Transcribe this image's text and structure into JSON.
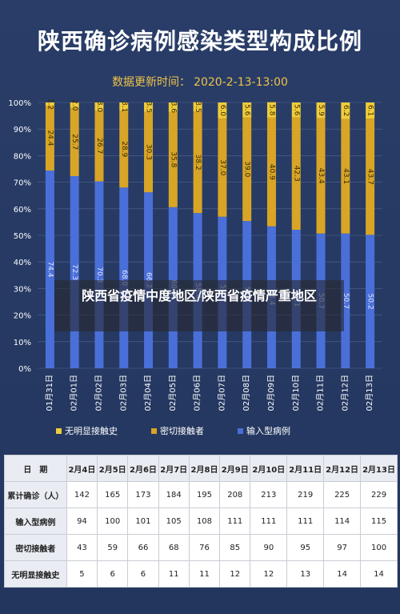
{
  "header": {
    "title": "陕西确诊病例感染类型构成比例",
    "update_label": "数据更新时间：",
    "update_value": "2020-2-13-13:00"
  },
  "overlay": {
    "text": "陕西省疫情中度地区/陕西省疫情严重地区"
  },
  "chart_data": {
    "type": "bar",
    "stacked": true,
    "categories": [
      "01月31日",
      "02月01日",
      "02月02日",
      "02月03日",
      "02月04日",
      "02月05日",
      "02月06日",
      "02月07日",
      "02月08日",
      "02月09日",
      "02月10日",
      "02月11日",
      "02月12日",
      "02月13日"
    ],
    "series": [
      {
        "name": "输入型病例",
        "color": "#4a6fd8",
        "values": [
          74.4,
          72.3,
          70.3,
          68.0,
          66.2,
          60.6,
          58.4,
          57.0,
          55.4,
          53.4,
          52.1,
          50.7,
          50.7,
          50.2
        ]
      },
      {
        "name": "密切接触者",
        "color": "#d8a526",
        "values": [
          24.4,
          25.7,
          26.7,
          28.9,
          30.3,
          35.8,
          38.2,
          37.0,
          39.0,
          40.9,
          42.3,
          43.4,
          43.1,
          43.7
        ]
      },
      {
        "name": "无明显接触史",
        "color": "#f0cc3a",
        "values": [
          1.2,
          2.0,
          3.0,
          3.1,
          3.5,
          3.6,
          3.5,
          6.0,
          5.6,
          5.8,
          5.6,
          5.9,
          6.2,
          6.1
        ]
      }
    ],
    "ylim": [
      0,
      100
    ],
    "yticks": [
      "0%",
      "10%",
      "20%",
      "30%",
      "40%",
      "50%",
      "60%",
      "70%",
      "80%",
      "90%",
      "100%"
    ],
    "legend_order": [
      "无明显接触史",
      "密切接触者",
      "输入型病例"
    ],
    "legend_position": "bottom",
    "grid": true
  },
  "table": {
    "header_label": "日　期",
    "columns": [
      "2月4日",
      "2月5日",
      "2月6日",
      "2月7日",
      "2月8日",
      "2月9日",
      "2月10日",
      "2月11日",
      "2月12日",
      "2月13日"
    ],
    "rows": [
      {
        "label": "累计确诊（人）",
        "values": [
          "142",
          "165",
          "173",
          "184",
          "195",
          "208",
          "213",
          "219",
          "225",
          "229"
        ]
      },
      {
        "label": "输入型病例",
        "values": [
          "94",
          "100",
          "101",
          "105",
          "108",
          "111",
          "111",
          "111",
          "114",
          "115"
        ]
      },
      {
        "label": "密切接触者",
        "values": [
          "43",
          "59",
          "66",
          "68",
          "76",
          "85",
          "90",
          "95",
          "97",
          "100"
        ]
      },
      {
        "label": "无明显接触史",
        "values": [
          "5",
          "6",
          "6",
          "11",
          "11",
          "12",
          "12",
          "13",
          "14",
          "14"
        ]
      }
    ]
  }
}
